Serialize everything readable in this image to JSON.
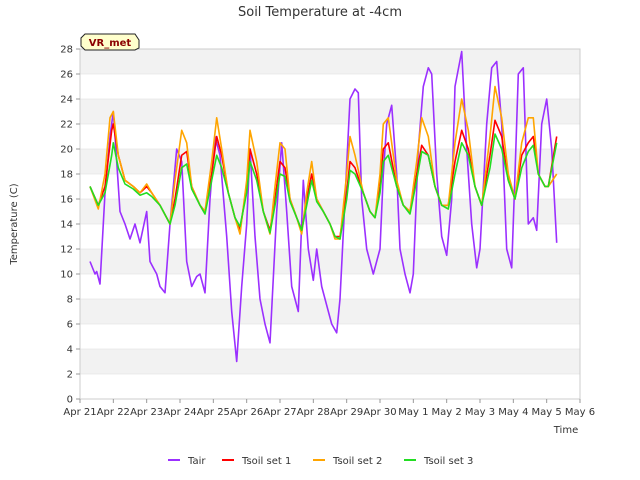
{
  "chart_data": {
    "type": "line",
    "title": "Soil Temperature at -4cm",
    "xlabel": "Time",
    "ylabel": "Temperature (C)",
    "ylim": [
      0,
      28
    ],
    "yticks": [
      0,
      2,
      4,
      6,
      8,
      10,
      12,
      14,
      16,
      18,
      20,
      22,
      24,
      26,
      28
    ],
    "xlim": [
      0,
      15
    ],
    "xtick_values": [
      0,
      1,
      2,
      3,
      4,
      5,
      6,
      7,
      8,
      9,
      10,
      11,
      12,
      13,
      14,
      15
    ],
    "xtick_labels": [
      "Apr 21",
      "Apr 22",
      "Apr 23",
      "Apr 24",
      "Apr 25",
      "Apr 26",
      "Apr 27",
      "Apr 28",
      "Apr 29",
      "Apr 30",
      "May 1",
      "May 2",
      "May 3",
      "May 4",
      "May 5",
      "May 6"
    ],
    "grid": "horizontal bands",
    "legend_position": "bottom",
    "badge": "VR_met",
    "series": [
      {
        "name": "Tair",
        "color": "#9b30ff",
        "x": [
          0.3,
          0.45,
          0.5,
          0.6,
          0.75,
          0.9,
          1.0,
          1.1,
          1.2,
          1.35,
          1.5,
          1.65,
          1.8,
          2.0,
          2.1,
          2.2,
          2.3,
          2.4,
          2.55,
          2.7,
          2.9,
          3.05,
          3.2,
          3.35,
          3.5,
          3.6,
          3.75,
          3.9,
          4.05,
          4.2,
          4.4,
          4.55,
          4.7,
          4.85,
          5.0,
          5.1,
          5.25,
          5.4,
          5.55,
          5.7,
          5.9,
          6.05,
          6.2,
          6.35,
          6.55,
          6.7,
          6.85,
          7.0,
          7.1,
          7.25,
          7.4,
          7.55,
          7.7,
          7.8,
          7.95,
          8.1,
          8.25,
          8.35,
          8.45,
          8.6,
          8.8,
          9.0,
          9.1,
          9.2,
          9.35,
          9.5,
          9.6,
          9.75,
          9.9,
          10.0,
          10.15,
          10.3,
          10.45,
          10.55,
          10.7,
          10.85,
          11.0,
          11.15,
          11.25,
          11.45,
          11.6,
          11.75,
          11.9,
          12.0,
          12.2,
          12.35,
          12.5,
          12.65,
          12.8,
          12.95,
          13.05,
          13.15,
          13.3,
          13.45,
          13.6,
          13.7,
          13.85,
          14.0,
          14.15,
          14.3
        ],
        "y": [
          11.0,
          10.0,
          10.2,
          9.2,
          16.5,
          21.0,
          23.0,
          19.0,
          15.0,
          14.0,
          12.8,
          14.0,
          12.5,
          15.0,
          11.0,
          10.5,
          10.0,
          9.0,
          8.5,
          14.0,
          20.0,
          19.0,
          11.0,
          9.0,
          9.8,
          10.0,
          8.5,
          16.0,
          21.0,
          19.5,
          13.0,
          7.0,
          3.0,
          9.0,
          14.0,
          20.0,
          13.0,
          8.0,
          6.0,
          4.5,
          15.0,
          20.5,
          15.0,
          9.0,
          7.0,
          17.5,
          12.0,
          9.5,
          12.0,
          9.0,
          7.5,
          6.0,
          5.3,
          8.0,
          16.0,
          24.0,
          24.8,
          24.5,
          16.0,
          12.0,
          10.0,
          12.0,
          18.0,
          22.0,
          23.5,
          18.0,
          12.0,
          10.0,
          8.5,
          10.0,
          20.0,
          25.0,
          26.5,
          26.0,
          18.0,
          13.0,
          11.5,
          16.0,
          25.0,
          27.8,
          20.0,
          14.0,
          10.5,
          12.0,
          22.0,
          26.5,
          27.0,
          22.0,
          12.0,
          10.5,
          18.0,
          26.0,
          26.5,
          14.0,
          14.5,
          13.5,
          22.0,
          24.0,
          20.0,
          12.5
        ]
      },
      {
        "name": "Tsoil set 1",
        "color": "#ff0000",
        "x": [
          0.3,
          0.55,
          0.75,
          0.95,
          1.0,
          1.15,
          1.35,
          1.6,
          1.8,
          2.0,
          2.15,
          2.4,
          2.7,
          2.85,
          3.05,
          3.2,
          3.35,
          3.6,
          3.75,
          3.95,
          4.1,
          4.25,
          4.45,
          4.65,
          4.8,
          5.0,
          5.1,
          5.3,
          5.5,
          5.7,
          5.85,
          6.0,
          6.15,
          6.3,
          6.5,
          6.65,
          6.8,
          6.95,
          7.1,
          7.3,
          7.5,
          7.65,
          7.8,
          8.0,
          8.1,
          8.25,
          8.5,
          8.7,
          8.85,
          9.0,
          9.1,
          9.25,
          9.5,
          9.7,
          9.9,
          10.1,
          10.25,
          10.45,
          10.65,
          10.85,
          11.05,
          11.25,
          11.45,
          11.65,
          11.85,
          12.05,
          12.3,
          12.45,
          12.65,
          12.85,
          13.05,
          13.25,
          13.45,
          13.6,
          13.75,
          13.95,
          14.05,
          14.3
        ],
        "y": [
          17.0,
          15.5,
          17.0,
          21.5,
          22.0,
          19.5,
          17.5,
          17.0,
          16.5,
          17.0,
          16.5,
          15.5,
          14.0,
          16.0,
          19.5,
          19.8,
          17.0,
          15.5,
          15.0,
          18.0,
          21.0,
          19.5,
          16.5,
          14.5,
          13.5,
          17.0,
          20.0,
          18.0,
          15.0,
          13.5,
          16.0,
          19.0,
          18.5,
          16.0,
          14.5,
          13.5,
          16.0,
          18.0,
          16.0,
          15.0,
          14.0,
          13.0,
          13.0,
          16.5,
          19.0,
          18.5,
          16.5,
          15.0,
          14.5,
          17.0,
          20.0,
          20.5,
          17.0,
          15.5,
          15.0,
          18.0,
          20.3,
          19.5,
          17.0,
          15.5,
          15.5,
          19.0,
          21.5,
          20.0,
          17.0,
          15.5,
          19.5,
          22.3,
          21.0,
          17.5,
          16.0,
          19.5,
          20.5,
          21.0,
          18.0,
          17.0,
          17.0,
          21.0
        ]
      },
      {
        "name": "Tsoil set 2",
        "color": "#ffa500",
        "x": [
          0.3,
          0.55,
          0.75,
          0.9,
          1.0,
          1.15,
          1.35,
          1.6,
          1.8,
          2.0,
          2.15,
          2.4,
          2.7,
          2.85,
          3.05,
          3.2,
          3.35,
          3.6,
          3.75,
          3.95,
          4.1,
          4.25,
          4.45,
          4.65,
          4.8,
          5.0,
          5.1,
          5.3,
          5.5,
          5.7,
          5.85,
          6.0,
          6.15,
          6.3,
          6.5,
          6.65,
          6.8,
          6.95,
          7.1,
          7.3,
          7.5,
          7.65,
          7.8,
          8.0,
          8.1,
          8.25,
          8.5,
          8.7,
          8.85,
          9.0,
          9.1,
          9.25,
          9.5,
          9.7,
          9.9,
          10.1,
          10.25,
          10.45,
          10.65,
          10.85,
          11.05,
          11.25,
          11.45,
          11.65,
          11.85,
          12.05,
          12.3,
          12.45,
          12.65,
          12.85,
          13.05,
          13.25,
          13.45,
          13.6,
          13.75,
          13.95,
          14.05,
          14.3
        ],
        "y": [
          17.0,
          15.2,
          18.0,
          22.5,
          23.0,
          19.5,
          17.5,
          17.0,
          16.5,
          17.2,
          16.5,
          15.5,
          14.0,
          17.5,
          21.5,
          20.5,
          17.0,
          15.5,
          15.0,
          19.0,
          22.5,
          20.0,
          16.5,
          14.5,
          13.2,
          17.5,
          21.5,
          19.0,
          15.0,
          13.2,
          17.0,
          20.5,
          20.0,
          16.0,
          14.5,
          13.2,
          16.5,
          19.0,
          16.0,
          15.0,
          14.0,
          12.8,
          12.8,
          18.0,
          21.0,
          19.5,
          16.5,
          15.0,
          14.5,
          18.0,
          22.0,
          22.5,
          17.5,
          15.5,
          15.0,
          19.0,
          22.5,
          21.0,
          17.0,
          15.5,
          15.5,
          20.5,
          24.0,
          21.5,
          17.0,
          15.5,
          21.0,
          25.0,
          22.5,
          18.0,
          16.0,
          20.5,
          22.5,
          22.5,
          18.0,
          17.0,
          17.0,
          18.0
        ]
      },
      {
        "name": "Tsoil set 3",
        "color": "#22dd22",
        "x": [
          0.3,
          0.55,
          0.75,
          0.95,
          1.0,
          1.15,
          1.35,
          1.6,
          1.8,
          2.0,
          2.15,
          2.4,
          2.7,
          2.85,
          3.05,
          3.2,
          3.35,
          3.6,
          3.75,
          3.95,
          4.1,
          4.25,
          4.45,
          4.65,
          4.8,
          5.0,
          5.1,
          5.3,
          5.5,
          5.7,
          5.85,
          6.0,
          6.15,
          6.3,
          6.5,
          6.65,
          6.8,
          6.95,
          7.1,
          7.3,
          7.5,
          7.65,
          7.8,
          8.0,
          8.1,
          8.25,
          8.5,
          8.7,
          8.85,
          9.0,
          9.1,
          9.25,
          9.5,
          9.7,
          9.9,
          10.1,
          10.25,
          10.45,
          10.65,
          10.85,
          11.05,
          11.25,
          11.45,
          11.65,
          11.85,
          12.05,
          12.3,
          12.45,
          12.65,
          12.85,
          13.05,
          13.25,
          13.45,
          13.6,
          13.75,
          13.95,
          14.05,
          14.3
        ],
        "y": [
          17.0,
          15.5,
          16.5,
          19.5,
          20.5,
          18.5,
          17.2,
          16.8,
          16.3,
          16.5,
          16.2,
          15.5,
          14.0,
          15.5,
          18.5,
          18.8,
          16.8,
          15.5,
          14.8,
          17.5,
          19.5,
          18.5,
          16.5,
          14.5,
          13.8,
          16.5,
          19.0,
          17.5,
          15.0,
          13.3,
          15.5,
          18.0,
          17.8,
          15.8,
          14.5,
          13.5,
          15.5,
          17.5,
          15.8,
          15.0,
          14.0,
          13.0,
          12.8,
          16.0,
          18.3,
          18.0,
          16.5,
          15.0,
          14.5,
          16.5,
          19.0,
          19.5,
          17.0,
          15.5,
          14.8,
          17.5,
          19.8,
          19.5,
          17.0,
          15.5,
          15.2,
          18.0,
          20.5,
          19.5,
          17.0,
          15.5,
          18.5,
          21.2,
          20.0,
          17.5,
          16.0,
          18.5,
          19.8,
          20.3,
          18.0,
          17.0,
          17.0,
          20.5
        ]
      }
    ]
  }
}
